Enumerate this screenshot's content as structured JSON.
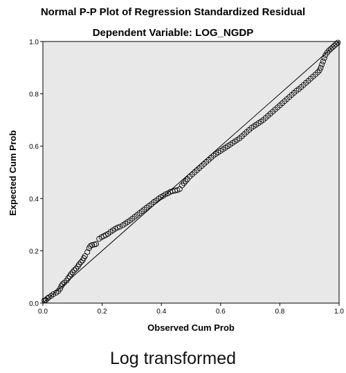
{
  "chart_data": {
    "type": "scatter",
    "title": "Normal P-P Plot of Regression Standardized Residual",
    "subtitle": "Dependent Variable: LOG_NGDP",
    "xlabel": "Observed Cum Prob",
    "ylabel": "Expected Cum Prob",
    "xlim": [
      0,
      1
    ],
    "ylim": [
      0,
      1
    ],
    "xticks": [
      "0.0",
      "0.2",
      "0.4",
      "0.6",
      "0.8",
      "1.0"
    ],
    "yticks": [
      "0.0",
      "0.2",
      "0.4",
      "0.6",
      "0.8",
      "1.0"
    ],
    "grid": false,
    "legend": "none",
    "plot_background": "#e8e8e8",
    "marker_style": "open-circle",
    "reference_line": {
      "from": [
        0,
        0
      ],
      "to": [
        1,
        1
      ]
    },
    "points": [
      [
        0.005,
        0.01
      ],
      [
        0.01,
        0.012
      ],
      [
        0.015,
        0.018
      ],
      [
        0.02,
        0.022
      ],
      [
        0.028,
        0.028
      ],
      [
        0.035,
        0.034
      ],
      [
        0.045,
        0.04
      ],
      [
        0.052,
        0.046
      ],
      [
        0.058,
        0.055
      ],
      [
        0.062,
        0.065
      ],
      [
        0.066,
        0.072
      ],
      [
        0.072,
        0.078
      ],
      [
        0.08,
        0.086
      ],
      [
        0.085,
        0.095
      ],
      [
        0.09,
        0.102
      ],
      [
        0.094,
        0.11
      ],
      [
        0.1,
        0.118
      ],
      [
        0.106,
        0.126
      ],
      [
        0.112,
        0.132
      ],
      [
        0.118,
        0.14
      ],
      [
        0.122,
        0.148
      ],
      [
        0.128,
        0.156
      ],
      [
        0.134,
        0.163
      ],
      [
        0.138,
        0.172
      ],
      [
        0.142,
        0.18
      ],
      [
        0.15,
        0.195
      ],
      [
        0.156,
        0.21
      ],
      [
        0.16,
        0.218
      ],
      [
        0.166,
        0.222
      ],
      [
        0.174,
        0.224
      ],
      [
        0.18,
        0.226
      ],
      [
        0.19,
        0.246
      ],
      [
        0.198,
        0.252
      ],
      [
        0.205,
        0.256
      ],
      [
        0.212,
        0.26
      ],
      [
        0.22,
        0.265
      ],
      [
        0.228,
        0.272
      ],
      [
        0.236,
        0.278
      ],
      [
        0.244,
        0.284
      ],
      [
        0.252,
        0.289
      ],
      [
        0.26,
        0.292
      ],
      [
        0.27,
        0.298
      ],
      [
        0.278,
        0.304
      ],
      [
        0.286,
        0.31
      ],
      [
        0.294,
        0.316
      ],
      [
        0.302,
        0.323
      ],
      [
        0.31,
        0.33
      ],
      [
        0.318,
        0.337
      ],
      [
        0.326,
        0.344
      ],
      [
        0.334,
        0.351
      ],
      [
        0.342,
        0.358
      ],
      [
        0.35,
        0.365
      ],
      [
        0.358,
        0.372
      ],
      [
        0.366,
        0.378
      ],
      [
        0.374,
        0.386
      ],
      [
        0.382,
        0.392
      ],
      [
        0.39,
        0.399
      ],
      [
        0.398,
        0.405
      ],
      [
        0.406,
        0.41
      ],
      [
        0.414,
        0.416
      ],
      [
        0.422,
        0.42
      ],
      [
        0.43,
        0.425
      ],
      [
        0.438,
        0.428
      ],
      [
        0.446,
        0.43
      ],
      [
        0.454,
        0.432
      ],
      [
        0.462,
        0.436
      ],
      [
        0.47,
        0.45
      ],
      [
        0.476,
        0.458
      ],
      [
        0.482,
        0.466
      ],
      [
        0.488,
        0.474
      ],
      [
        0.496,
        0.484
      ],
      [
        0.504,
        0.492
      ],
      [
        0.512,
        0.5
      ],
      [
        0.52,
        0.508
      ],
      [
        0.528,
        0.516
      ],
      [
        0.536,
        0.524
      ],
      [
        0.544,
        0.532
      ],
      [
        0.552,
        0.54
      ],
      [
        0.56,
        0.548
      ],
      [
        0.568,
        0.556
      ],
      [
        0.576,
        0.564
      ],
      [
        0.584,
        0.57
      ],
      [
        0.592,
        0.576
      ],
      [
        0.6,
        0.582
      ],
      [
        0.608,
        0.588
      ],
      [
        0.616,
        0.594
      ],
      [
        0.624,
        0.6
      ],
      [
        0.632,
        0.606
      ],
      [
        0.64,
        0.612
      ],
      [
        0.648,
        0.618
      ],
      [
        0.656,
        0.624
      ],
      [
        0.664,
        0.63
      ],
      [
        0.672,
        0.638
      ],
      [
        0.68,
        0.646
      ],
      [
        0.688,
        0.654
      ],
      [
        0.696,
        0.662
      ],
      [
        0.704,
        0.67
      ],
      [
        0.712,
        0.676
      ],
      [
        0.72,
        0.682
      ],
      [
        0.728,
        0.688
      ],
      [
        0.736,
        0.694
      ],
      [
        0.744,
        0.7
      ],
      [
        0.752,
        0.708
      ],
      [
        0.76,
        0.716
      ],
      [
        0.768,
        0.724
      ],
      [
        0.776,
        0.732
      ],
      [
        0.784,
        0.74
      ],
      [
        0.792,
        0.748
      ],
      [
        0.8,
        0.756
      ],
      [
        0.808,
        0.764
      ],
      [
        0.816,
        0.772
      ],
      [
        0.824,
        0.78
      ],
      [
        0.832,
        0.788
      ],
      [
        0.84,
        0.796
      ],
      [
        0.848,
        0.804
      ],
      [
        0.856,
        0.812
      ],
      [
        0.864,
        0.818
      ],
      [
        0.872,
        0.826
      ],
      [
        0.88,
        0.834
      ],
      [
        0.888,
        0.842
      ],
      [
        0.896,
        0.85
      ],
      [
        0.904,
        0.858
      ],
      [
        0.912,
        0.866
      ],
      [
        0.92,
        0.874
      ],
      [
        0.928,
        0.882
      ],
      [
        0.934,
        0.89
      ],
      [
        0.938,
        0.9
      ],
      [
        0.942,
        0.912
      ],
      [
        0.946,
        0.924
      ],
      [
        0.95,
        0.936
      ],
      [
        0.954,
        0.948
      ],
      [
        0.96,
        0.958
      ],
      [
        0.966,
        0.966
      ],
      [
        0.972,
        0.972
      ],
      [
        0.978,
        0.978
      ],
      [
        0.984,
        0.984
      ],
      [
        0.99,
        0.99
      ],
      [
        0.996,
        0.996
      ]
    ]
  },
  "caption": "Log transformed"
}
